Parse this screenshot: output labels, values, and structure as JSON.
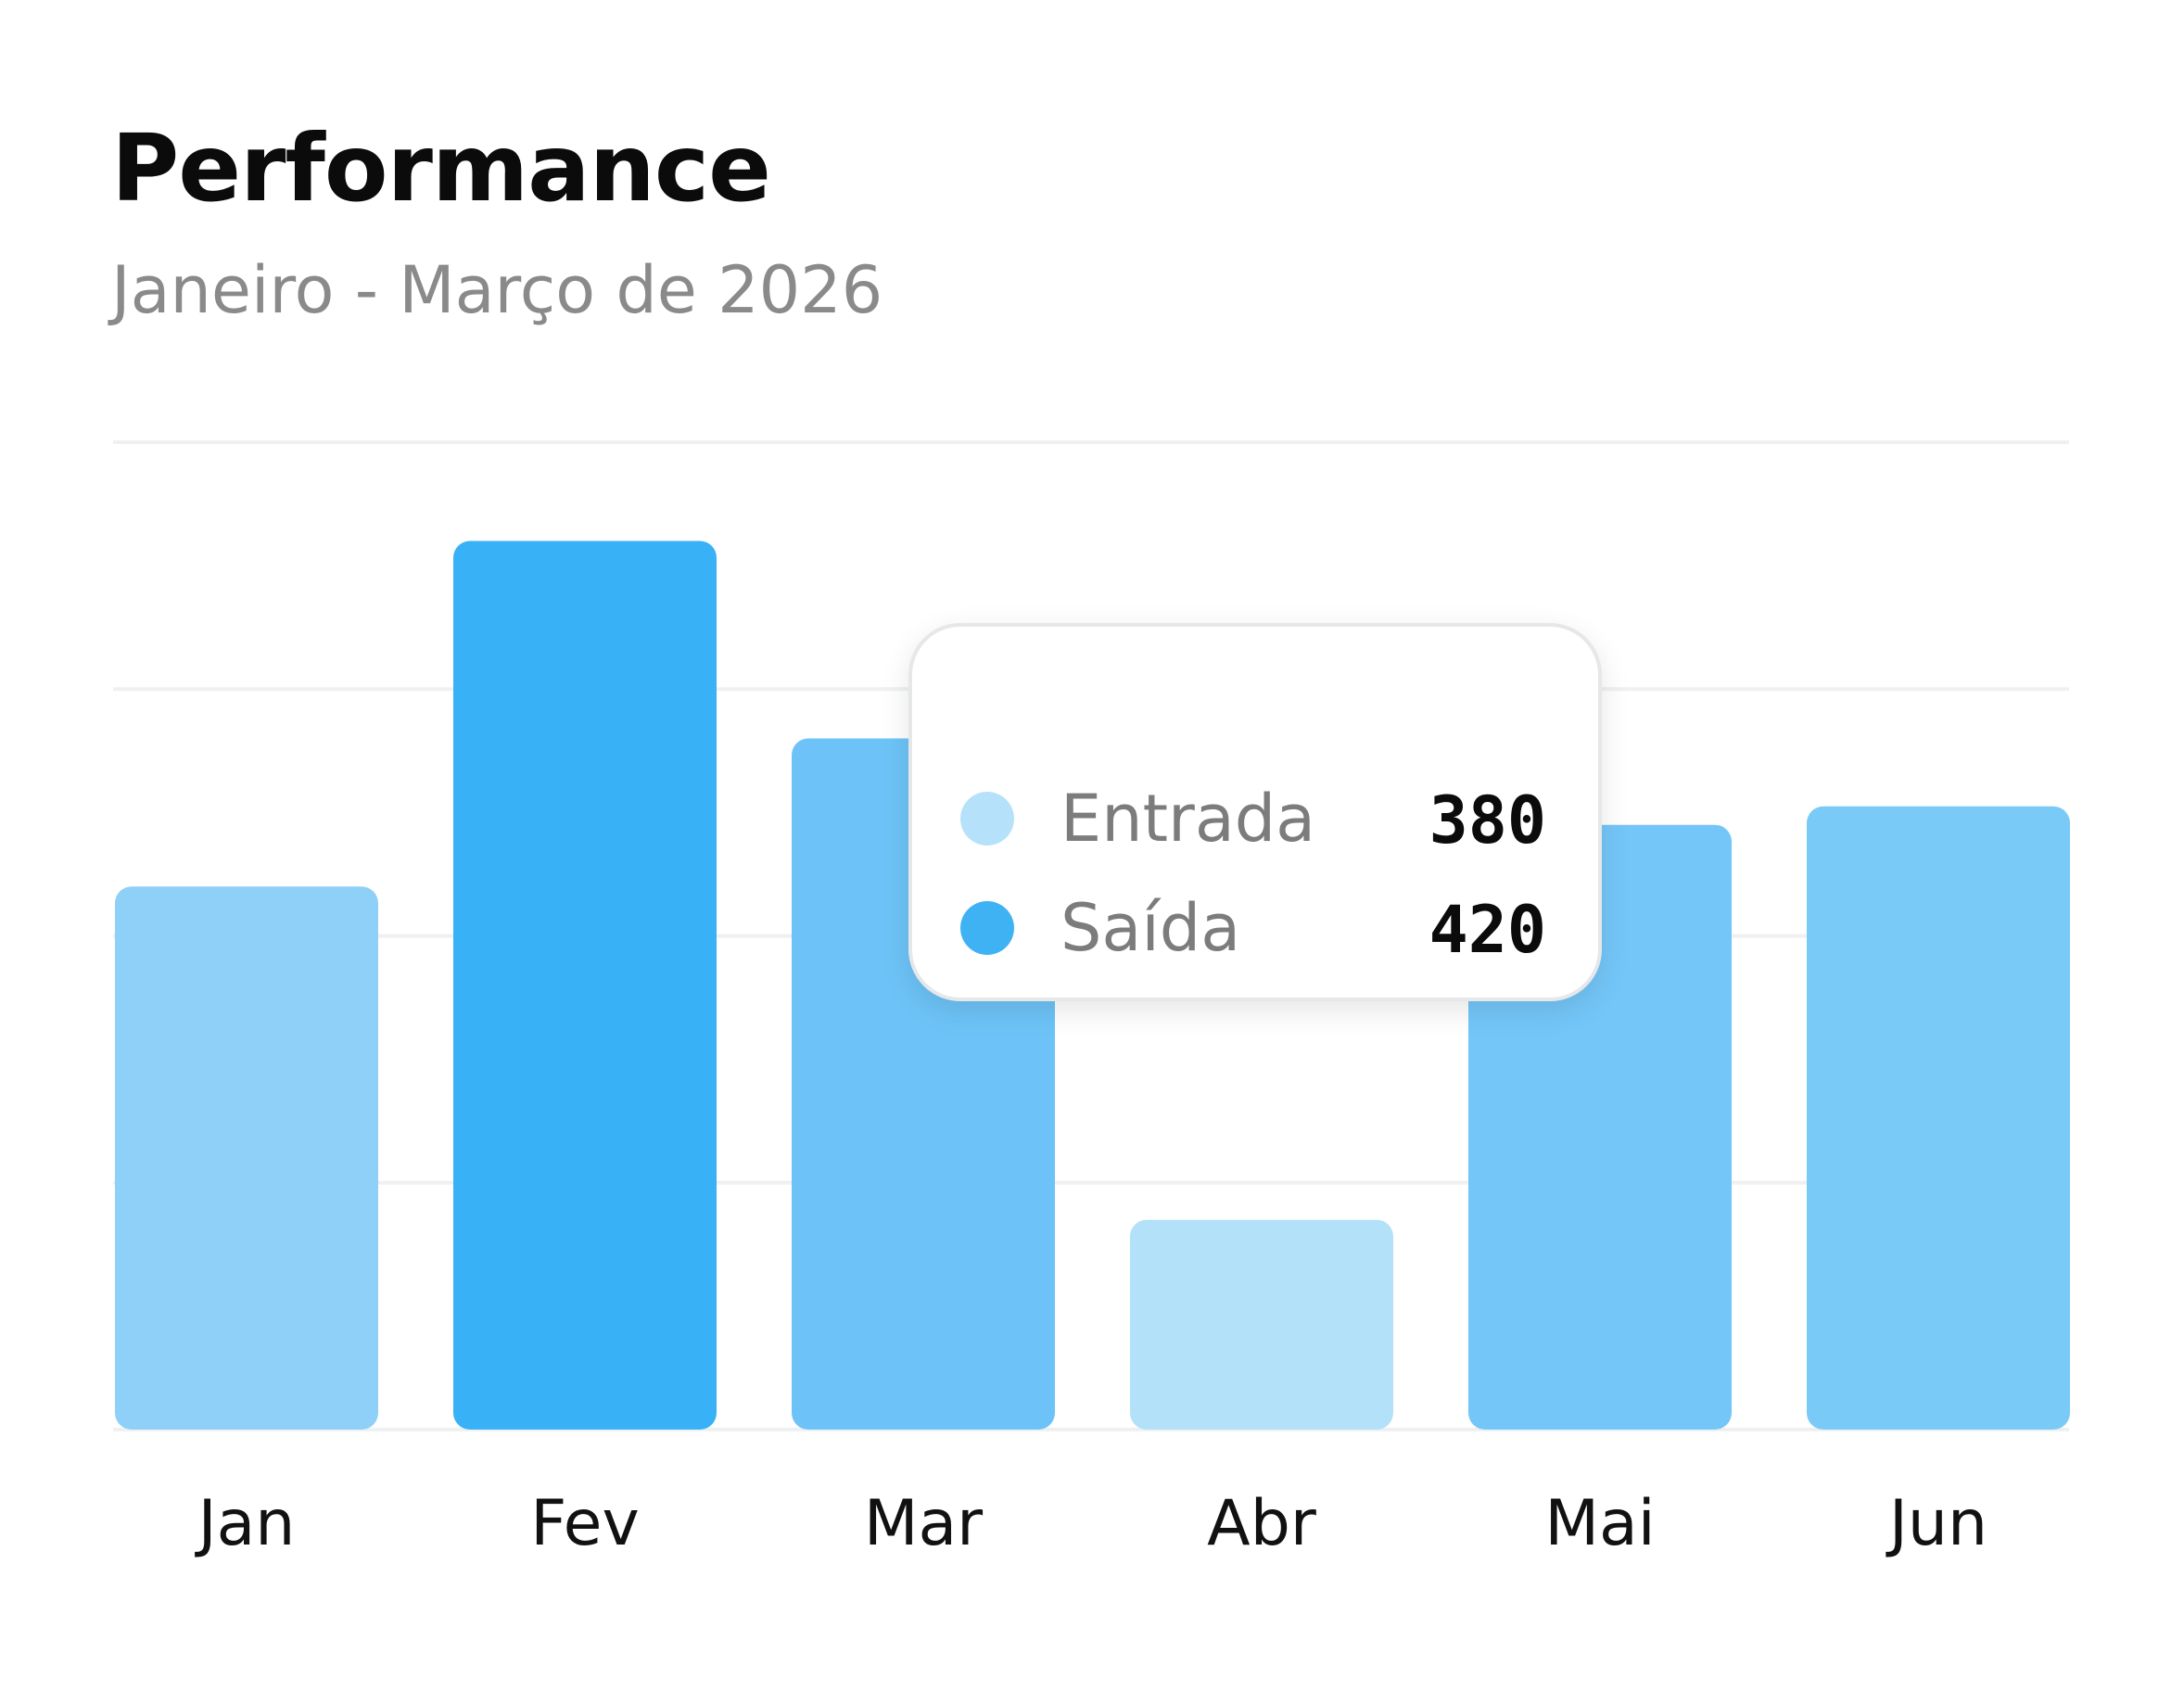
{
  "header": {
    "title": "Performance",
    "subtitle": "Janeiro - Março de 2026"
  },
  "colors": {
    "light_blue": "#aee0fa",
    "mid_blue": "#74c6f8",
    "strong_blue": "#38b1f6",
    "gridline": "#eef0f2"
  },
  "tooltip": {
    "rows": [
      {
        "label": "Entrada",
        "value": "380",
        "color": "#b5e1fa"
      },
      {
        "label": "Saída",
        "value": "420",
        "color": "#3fb2f4"
      }
    ]
  },
  "chart_data": {
    "type": "bar",
    "categories": [
      "Jan",
      "Fev",
      "Mar",
      "Abr",
      "Mai",
      "Jun"
    ],
    "values": [
      440,
      720,
      560,
      170,
      490,
      505
    ],
    "bar_colors": [
      "#8fd0f8",
      "#38b1f6",
      "#6dc3f7",
      "#b3e1fa",
      "#74c6f8",
      "#7acaf8"
    ],
    "ylim": [
      0,
      800
    ],
    "yticks": [
      0,
      200,
      400,
      600,
      800
    ],
    "grid": true,
    "legend": "tooltip-center"
  }
}
